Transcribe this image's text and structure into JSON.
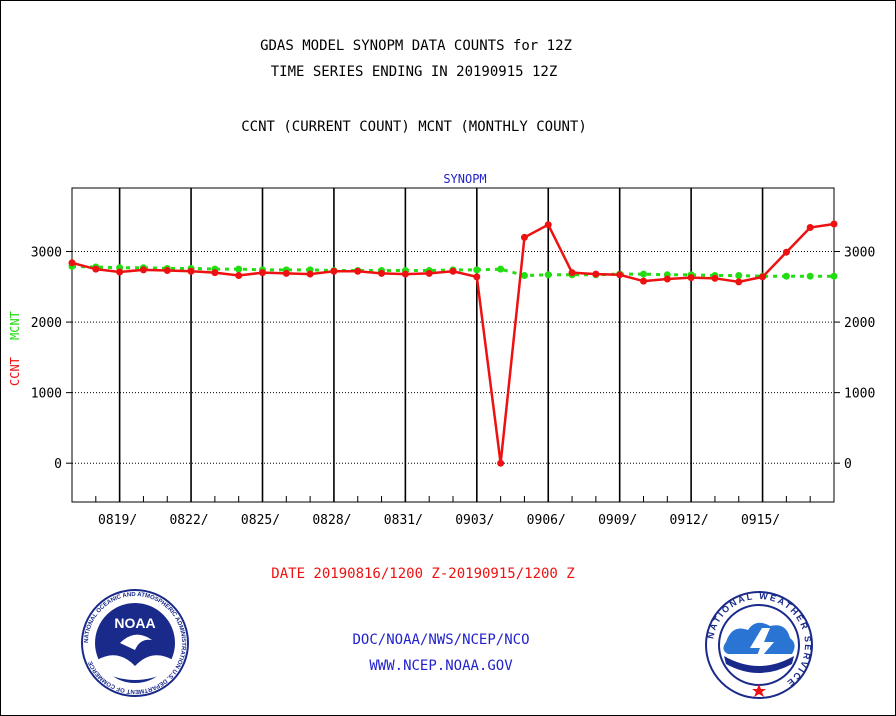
{
  "header": {
    "line1": "GDAS MODEL SYNOPM DATA COUNTS for 12Z",
    "line2": "TIME SERIES ENDING IN 20190915 12Z",
    "line3": "CCNT (CURRENT COUNT) MCNT (MONTHLY COUNT)"
  },
  "chart_data": {
    "type": "line",
    "title": "SYNOPM",
    "xlabel": "DATE 20190816/1200 Z-20190915/1200 Z",
    "ylabel_ccnt": "CCNT",
    "ylabel_mcnt": "MCNT",
    "ylim": [
      -550,
      3900
    ],
    "yticks": [
      0,
      1000,
      2000,
      3000
    ],
    "x_date_labels": [
      "0819/",
      "0822/",
      "0825/",
      "0828/",
      "0831/",
      "0903/",
      "0906/",
      "0909/",
      "0912/",
      "0915/"
    ],
    "x_label_day_index": [
      3,
      6,
      9,
      12,
      15,
      18,
      21,
      24,
      27,
      30
    ],
    "grid": true,
    "colors": {
      "ccnt": "#ee1111",
      "mcnt": "#22dd11",
      "title": "#2222cc",
      "footer": "#2222cc",
      "date": "#ee1111"
    },
    "series": [
      {
        "name": "CCNT",
        "values": [
          2840,
          2750,
          2710,
          2740,
          2730,
          2720,
          2700,
          2660,
          2700,
          2690,
          2680,
          2720,
          2720,
          2690,
          2680,
          2690,
          2720,
          2640,
          0,
          3200,
          3380,
          2700,
          2680,
          2670,
          2580,
          2610,
          2630,
          2620,
          2570,
          2640,
          2990,
          3340,
          3390
        ]
      },
      {
        "name": "MCNT",
        "values": [
          2790,
          2780,
          2770,
          2770,
          2760,
          2760,
          2750,
          2750,
          2740,
          2740,
          2740,
          2730,
          2730,
          2730,
          2730,
          2730,
          2740,
          2740,
          2750,
          2660,
          2670,
          2670,
          2670,
          2680,
          2680,
          2670,
          2670,
          2660,
          2660,
          2650,
          2650,
          2650,
          2650
        ]
      }
    ]
  },
  "footer": {
    "line1": "DOC/NOAA/NWS/NCEP/NCO",
    "line2": "WWW.NCEP.NOAA.GOV"
  },
  "logos": {
    "noaa_text": "NOAA",
    "noaa_ring": "NATIONAL OCEANIC AND ATMOSPHERIC ADMINISTRATION  U.S. DEPARTMENT OF COMMERCE",
    "nws_ring": "NATIONAL WEATHER SERVICE"
  }
}
